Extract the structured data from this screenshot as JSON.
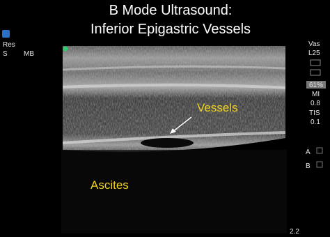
{
  "header": {
    "title_lines": [
      "B Mode Ultrasound:",
      "Inferior Epigastric Vessels"
    ]
  },
  "annotations": {
    "vessels": "Vessels",
    "ascites": "Ascites"
  },
  "left_panel": {
    "res": "Res",
    "s": "S",
    "mb": "MB"
  },
  "right_panel": {
    "preset": "Vas",
    "probe": "L25",
    "power": "61%",
    "mi_label": "MI",
    "mi_value": "0.8",
    "tis_label": "TIS",
    "tis_value": "0.1",
    "marker_a": "A",
    "marker_b": "B",
    "depth": "2.2"
  }
}
